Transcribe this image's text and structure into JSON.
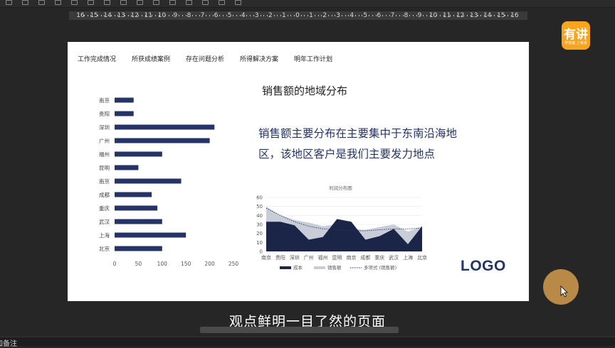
{
  "toolbar": {
    "icons": [
      "cursor-icon",
      "shape-icon",
      "text-icon",
      "line-icon",
      "pen-icon",
      "copy-icon",
      "box-icon",
      "box-icon",
      "crop-icon",
      "circle-icon",
      "text-a-icon",
      "text-a-icon",
      "align-icon",
      "grid-icon",
      "more-icon"
    ],
    "glyph_a": "A",
    "glyph_a2": "A"
  },
  "ruler": {
    "labels": [
      "16",
      "15",
      "14",
      "13",
      "12",
      "11",
      "10",
      "9",
      "8",
      "7",
      "6",
      "5",
      "4",
      "3",
      "2",
      "1",
      "0",
      "1",
      "2",
      "3",
      "4",
      "5",
      "6",
      "7",
      "8",
      "9",
      "10",
      "11",
      "12",
      "13",
      "14",
      "15",
      "16"
    ]
  },
  "slide": {
    "nav": [
      "工作完成情况",
      "所获成绩案例",
      "存在问题分析",
      "所得解决方案",
      "明年工作计划"
    ],
    "title": "销售额的地域分布",
    "headline": "销售额主要分布在主要集中于东南沿海地区，该地区客户是我们主要发力地点",
    "logo": "LOGO"
  },
  "chart_data": [
    {
      "type": "bar",
      "orientation": "horizontal",
      "categories": [
        "南京",
        "贵阳",
        "深圳",
        "广州",
        "福州",
        "昆明",
        "南京",
        "成都",
        "重庆",
        "武汉",
        "上海",
        "北京"
      ],
      "values": [
        40,
        40,
        210,
        200,
        100,
        50,
        140,
        78,
        90,
        100,
        150,
        100
      ],
      "xlim": [
        0,
        250
      ],
      "xticks": [
        "0",
        "50",
        "100",
        "150",
        "200",
        "250"
      ],
      "bar_color": "#253367",
      "grid": false
    },
    {
      "type": "area",
      "title": "利润分布图",
      "categories": [
        "南京",
        "贵阳",
        "深圳",
        "广州",
        "福州",
        "昆明",
        "南京",
        "成都",
        "重庆",
        "武汉",
        "上海",
        "北京"
      ],
      "ylim": [
        0,
        60
      ],
      "yticks": [
        "0",
        "10",
        "20",
        "30",
        "40",
        "50",
        "60"
      ],
      "series": [
        {
          "name": "成本",
          "values": [
            33,
            33,
            29,
            13,
            16,
            36,
            33,
            13,
            17,
            25,
            8,
            28
          ],
          "color": "#1b2547"
        },
        {
          "name": "销售额",
          "values": [
            50,
            40,
            35,
            32,
            28,
            30,
            25,
            24,
            27,
            30,
            22,
            28
          ],
          "color": "#c9cdd8"
        },
        {
          "name": "多项式 (销售额)",
          "values": [
            48,
            40,
            33,
            28,
            25,
            24,
            23,
            23,
            24,
            25,
            25,
            26
          ],
          "style": "dotted",
          "color": "#253367"
        }
      ],
      "legend_position": "bottom"
    }
  ],
  "app_badge": {
    "big": "有讲",
    "small": "学技能 上有讲"
  },
  "subtitle": "观点鲜明一目了然的页面",
  "statusbar": {
    "notes": "加备注"
  }
}
